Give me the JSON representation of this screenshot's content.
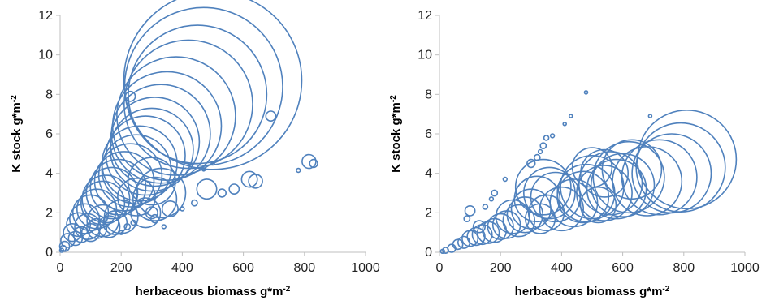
{
  "chart_data": [
    {
      "type": "bubble",
      "xlabel_main": "herbaceous biomass g*m",
      "xlabel_exp": "-2",
      "ylabel_main": "K stock g*m",
      "ylabel_exp": "-2",
      "xlim": [
        0,
        1000
      ],
      "ylim": [
        0,
        12
      ],
      "x_ticks": [
        "0",
        "200",
        "400",
        "600",
        "800",
        "1000"
      ],
      "y_ticks": [
        "0",
        "2",
        "4",
        "6",
        "8",
        "10",
        "12"
      ],
      "series_color": "#4F81BD",
      "points": [
        [
          500,
          8.7,
          9
        ],
        [
          470,
          8.4,
          8
        ],
        [
          450,
          8.0,
          7
        ],
        [
          420,
          7.5,
          6.5
        ],
        [
          380,
          6.9,
          6
        ],
        [
          350,
          6.4,
          5.5
        ],
        [
          330,
          6.0,
          5
        ],
        [
          310,
          5.6,
          4.5
        ],
        [
          300,
          5.2,
          4.2
        ],
        [
          280,
          4.9,
          4
        ],
        [
          260,
          4.5,
          3.8
        ],
        [
          250,
          4.2,
          3.5
        ],
        [
          230,
          3.9,
          3.2
        ],
        [
          210,
          3.6,
          3.0
        ],
        [
          190,
          3.3,
          2.8
        ],
        [
          170,
          3.0,
          2.6
        ],
        [
          150,
          2.7,
          2.4
        ],
        [
          140,
          2.5,
          2.2
        ],
        [
          120,
          2.2,
          2.0
        ],
        [
          100,
          2.0,
          1.8
        ],
        [
          80,
          1.7,
          1.5
        ],
        [
          60,
          1.4,
          1.2
        ],
        [
          40,
          1.0,
          0.9
        ],
        [
          25,
          0.6,
          0.7
        ],
        [
          15,
          0.3,
          0.5
        ],
        [
          10,
          0.2,
          0.3
        ],
        [
          5,
          0.1,
          0.2
        ],
        [
          330,
          3.0,
          2.5
        ],
        [
          310,
          2.7,
          2.2
        ],
        [
          300,
          3.6,
          2.4
        ],
        [
          280,
          2.0,
          1.5
        ],
        [
          250,
          2.8,
          1.9
        ],
        [
          200,
          1.8,
          1.7
        ],
        [
          180,
          1.5,
          1.2
        ],
        [
          160,
          1.3,
          1.1
        ],
        [
          140,
          1.6,
          1.6
        ],
        [
          120,
          1.2,
          1.0
        ],
        [
          100,
          1.0,
          0.9
        ],
        [
          90,
          1.3,
          1.3
        ],
        [
          70,
          0.9,
          0.8
        ],
        [
          50,
          0.7,
          0.7
        ],
        [
          360,
          2.2,
          0.8
        ],
        [
          300,
          2.0,
          0.6
        ],
        [
          310,
          1.7,
          0.4
        ],
        [
          230,
          7.9,
          0.5
        ],
        [
          690,
          6.9,
          0.5
        ],
        [
          815,
          4.6,
          0.7
        ],
        [
          830,
          4.5,
          0.4
        ],
        [
          780,
          4.15,
          0.2
        ],
        [
          620,
          3.7,
          0.8
        ],
        [
          640,
          3.6,
          0.7
        ],
        [
          570,
          3.2,
          0.5
        ],
        [
          480,
          3.2,
          1.0
        ],
        [
          530,
          3.0,
          0.4
        ],
        [
          440,
          2.5,
          0.3
        ],
        [
          500,
          4.5,
          0.15
        ],
        [
          470,
          4.2,
          0.15
        ],
        [
          400,
          2.2,
          0.2
        ],
        [
          340,
          1.3,
          0.2
        ],
        [
          220,
          1.3,
          0.3
        ],
        [
          200,
          1.0,
          0.2
        ],
        [
          240,
          1.5,
          0.25
        ]
      ]
    },
    {
      "type": "bubble",
      "xlabel_main": "herbaceous biomass g*m",
      "xlabel_exp": "-2",
      "ylabel_main": "K stock g*m",
      "ylabel_exp": "-2",
      "xlim": [
        0,
        1000
      ],
      "ylim": [
        0,
        12
      ],
      "x_ticks": [
        "0",
        "200",
        "400",
        "600",
        "800",
        "1000"
      ],
      "y_ticks": [
        "0",
        "2",
        "4",
        "6",
        "8",
        "10",
        "12"
      ],
      "series_color": "#4F81BD",
      "points": [
        [
          810,
          4.7,
          5
        ],
        [
          790,
          4.3,
          4.5
        ],
        [
          760,
          4.0,
          4
        ],
        [
          720,
          3.8,
          3.8
        ],
        [
          680,
          3.6,
          3.5
        ],
        [
          620,
          3.8,
          3.6
        ],
        [
          600,
          3.4,
          3.2
        ],
        [
          580,
          3.2,
          3.0
        ],
        [
          560,
          3.5,
          3.2
        ],
        [
          540,
          3.0,
          2.8
        ],
        [
          500,
          3.3,
          3.2
        ],
        [
          480,
          3.0,
          2.9
        ],
        [
          470,
          2.8,
          2.6
        ],
        [
          440,
          2.5,
          2.4
        ],
        [
          400,
          2.2,
          2.2
        ],
        [
          380,
          2.8,
          2.5
        ],
        [
          360,
          3.0,
          2.6
        ],
        [
          340,
          3.3,
          2.8
        ],
        [
          320,
          2.7,
          2.3
        ],
        [
          300,
          2.2,
          2.0
        ],
        [
          280,
          1.9,
          1.8
        ],
        [
          260,
          1.6,
          1.6
        ],
        [
          240,
          1.8,
          1.7
        ],
        [
          220,
          1.4,
          1.4
        ],
        [
          200,
          1.3,
          1.3
        ],
        [
          180,
          1.1,
          1.2
        ],
        [
          160,
          1.0,
          1.1
        ],
        [
          140,
          0.9,
          1.0
        ],
        [
          120,
          0.8,
          0.9
        ],
        [
          100,
          0.7,
          0.8
        ],
        [
          80,
          0.5,
          0.6
        ],
        [
          60,
          0.4,
          0.5
        ],
        [
          40,
          0.2,
          0.4
        ],
        [
          20,
          0.1,
          0.3
        ],
        [
          10,
          0.05,
          0.2
        ],
        [
          540,
          4.0,
          2.4
        ],
        [
          500,
          4.3,
          2.0
        ],
        [
          630,
          4.2,
          3.0
        ],
        [
          520,
          2.4,
          1.8
        ],
        [
          330,
          1.7,
          1.5
        ],
        [
          350,
          2.0,
          1.8
        ],
        [
          300,
          4.5,
          0.4
        ],
        [
          320,
          4.8,
          0.3
        ],
        [
          340,
          5.4,
          0.3
        ],
        [
          350,
          5.8,
          0.25
        ],
        [
          370,
          5.9,
          0.2
        ],
        [
          330,
          5.1,
          0.2
        ],
        [
          430,
          6.9,
          0.12
        ],
        [
          480,
          8.1,
          0.12
        ],
        [
          690,
          6.9,
          0.12
        ],
        [
          410,
          6.5,
          0.12
        ],
        [
          215,
          3.7,
          0.2
        ],
        [
          100,
          2.1,
          0.5
        ],
        [
          180,
          3.0,
          0.3
        ],
        [
          170,
          2.7,
          0.2
        ],
        [
          150,
          2.3,
          0.25
        ],
        [
          90,
          1.7,
          0.3
        ],
        [
          130,
          1.3,
          0.6
        ]
      ]
    }
  ]
}
